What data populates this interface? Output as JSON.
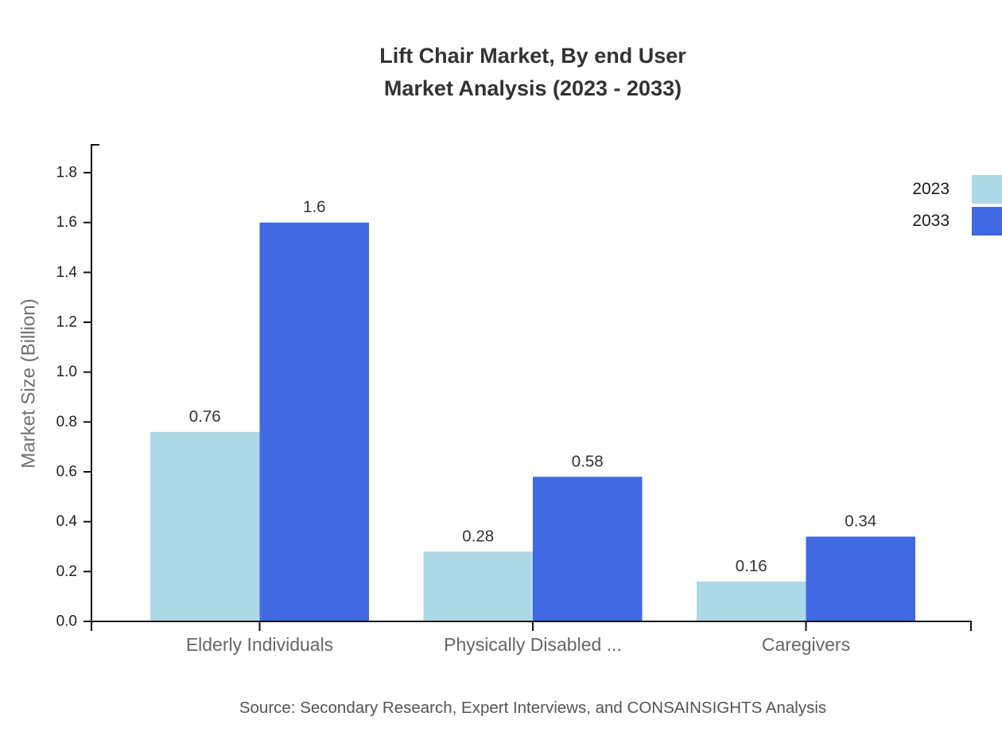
{
  "title": {
    "line1": "Lift Chair Market, By end User",
    "line2": "Market Analysis (2023 - 2033)"
  },
  "legend": [
    {
      "label": "2023",
      "color": "#ADD8E6"
    },
    {
      "label": "2033",
      "color": "#4169E1"
    }
  ],
  "source": "Source: Secondary Research, Expert Interviews, and CONSAINSIGHTS Analysis",
  "chart_data": {
    "type": "bar",
    "categories": [
      "Elderly Individuals",
      "Physically Disabled ...",
      "Caregivers"
    ],
    "series": [
      {
        "name": "2023",
        "color": "#ADD8E6",
        "values": [
          0.76,
          0.28,
          0.16
        ]
      },
      {
        "name": "2033",
        "color": "#4169E1",
        "values": [
          1.6,
          0.58,
          0.34
        ]
      }
    ],
    "title": "Lift Chair Market, By end User Market Analysis (2023 - 2033)",
    "xlabel": "",
    "ylabel": "Market Size (Billion)",
    "ylim": [
      0,
      1.9
    ],
    "yticks": [
      0.0,
      0.2,
      0.4,
      0.6,
      0.8,
      1.0,
      1.2,
      1.4,
      1.6,
      1.8
    ],
    "grid": false,
    "legend_position": "top-right",
    "value_labels_shown": true
  }
}
